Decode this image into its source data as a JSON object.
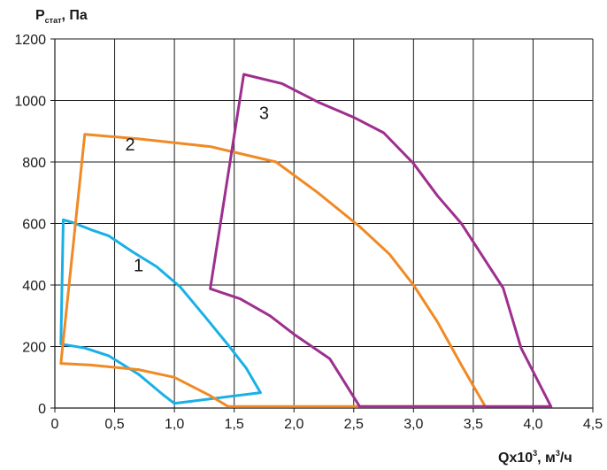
{
  "chart_data": {
    "type": "line",
    "ylabel": {
      "main": "P",
      "sub": "стат",
      "unit": ", Па"
    },
    "xlabel": {
      "main": "Qx10",
      "sup": "3",
      "unit": ", м",
      "unit_sup": "3",
      "unit_tail": "/ч"
    },
    "xlim": [
      0,
      4.5
    ],
    "ylim": [
      0,
      1200
    ],
    "xticks": [
      0,
      0.5,
      1.0,
      1.5,
      2.0,
      2.5,
      3.0,
      3.5,
      4.0,
      4.5
    ],
    "xtick_labels": [
      "0",
      "0,5",
      "1,0",
      "1,5",
      "2,0",
      "2,5",
      "3,0",
      "3,5",
      "4,0",
      "4,5"
    ],
    "yticks": [
      0,
      200,
      400,
      600,
      800,
      1000,
      1200
    ],
    "ytick_labels": [
      "0",
      "200",
      "400",
      "600",
      "800",
      "1000",
      "1200"
    ],
    "grid": true,
    "series": [
      {
        "name": "1",
        "color": "#1ab0e6",
        "points": [
          [
            0.05,
            208
          ],
          [
            0.07,
            612
          ],
          [
            0.15,
            603
          ],
          [
            0.3,
            580
          ],
          [
            0.45,
            560
          ],
          [
            0.65,
            508
          ],
          [
            0.85,
            460
          ],
          [
            1.05,
            393
          ],
          [
            1.25,
            300
          ],
          [
            1.45,
            205
          ],
          [
            1.6,
            130
          ],
          [
            1.72,
            50
          ],
          [
            1.0,
            15
          ],
          [
            0.9,
            45
          ],
          [
            0.7,
            110
          ],
          [
            0.45,
            170
          ],
          [
            0.25,
            195
          ],
          [
            0.05,
            208
          ]
        ]
      },
      {
        "name": "2",
        "color": "#f08a24",
        "points": [
          [
            0.05,
            145
          ],
          [
            0.25,
            890
          ],
          [
            0.7,
            875
          ],
          [
            1.3,
            850
          ],
          [
            1.85,
            800
          ],
          [
            2.2,
            700
          ],
          [
            2.55,
            590
          ],
          [
            2.8,
            500
          ],
          [
            3.0,
            400
          ],
          [
            3.2,
            280
          ],
          [
            3.4,
            140
          ],
          [
            3.6,
            5
          ],
          [
            1.45,
            5
          ],
          [
            1.3,
            40
          ],
          [
            1.0,
            100
          ],
          [
            0.7,
            125
          ],
          [
            0.3,
            140
          ],
          [
            0.05,
            145
          ]
        ]
      },
      {
        "name": "3",
        "color": "#9e2f8e",
        "points": [
          [
            1.3,
            388
          ],
          [
            1.58,
            1085
          ],
          [
            1.9,
            1055
          ],
          [
            2.2,
            995
          ],
          [
            2.5,
            945
          ],
          [
            2.75,
            895
          ],
          [
            3.0,
            795
          ],
          [
            3.2,
            690
          ],
          [
            3.4,
            600
          ],
          [
            3.6,
            480
          ],
          [
            3.75,
            390
          ],
          [
            3.9,
            195
          ],
          [
            4.15,
            5
          ],
          [
            2.55,
            5
          ],
          [
            2.3,
            160
          ],
          [
            2.0,
            240
          ],
          [
            1.8,
            300
          ],
          [
            1.55,
            355
          ],
          [
            1.3,
            388
          ]
        ]
      }
    ],
    "curve_labels": [
      {
        "text": "1",
        "x": 0.7,
        "y": 445
      },
      {
        "text": "2",
        "x": 0.63,
        "y": 838
      },
      {
        "text": "3",
        "x": 1.75,
        "y": 940
      }
    ]
  }
}
